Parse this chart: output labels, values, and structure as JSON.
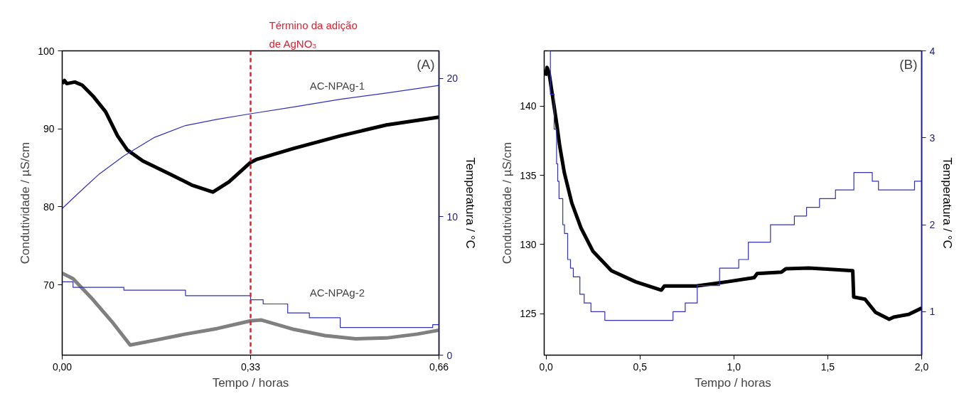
{
  "chart_data": [
    {
      "type": "line",
      "title": "(A)",
      "xlabel": "Tempo / horas",
      "ylabel": "Condutividade / µS/cm",
      "y2label": "Temperatura / °C",
      "xlim": [
        0,
        0.66
      ],
      "xticks": [
        {
          "value": 0,
          "label": "0,00"
        },
        {
          "value": 0.33,
          "label": "0,33"
        },
        {
          "value": 0.66,
          "label": "0,66"
        }
      ],
      "ylim": [
        61,
        100
      ],
      "yticks": [
        70,
        80,
        90,
        100
      ],
      "y2lim": [
        0,
        22
      ],
      "y2ticks": [
        0,
        10,
        20
      ],
      "grid": false,
      "ref_lines": [
        {
          "axis": "x",
          "value": 0.33,
          "label": "Término da adição\nde AgNO₃",
          "color": "#e02030",
          "line_style": "dashed"
        }
      ],
      "annotations": [
        "AC-NPAg-1",
        "AC-NPAg-2"
      ],
      "series": [
        {
          "color": "#000000",
          "x": [
            0,
            0.004,
            0.008,
            0.022,
            0.035,
            0.054,
            0.076,
            0.097,
            0.114,
            0.141,
            0.189,
            0.227,
            0.264,
            0.292,
            0.33,
            0.341,
            0.406,
            0.487,
            0.568,
            0.66
          ],
          "values": [
            95.8,
            96.2,
            95.8,
            96.0,
            95.6,
            94.2,
            92.2,
            89.1,
            87.3,
            85.9,
            84.2,
            82.8,
            81.9,
            83.2,
            85.7,
            86.1,
            87.5,
            89.1,
            90.5,
            91.5
          ]
        },
        {
          "color": "#808080",
          "x": [
            0,
            0.019,
            0.054,
            0.087,
            0.119,
            0.162,
            0.216,
            0.271,
            0.33,
            0.349,
            0.406,
            0.46,
            0.514,
            0.568,
            0.622,
            0.66
          ],
          "values": [
            71.5,
            70.8,
            68.1,
            65.3,
            62.3,
            62.9,
            63.7,
            64.4,
            65.4,
            65.5,
            64.3,
            63.5,
            63.1,
            63.2,
            63.7,
            64.2
          ]
        },
        {
          "color": "#3030b8",
          "axis": "y2",
          "x": [
            0,
            0.032,
            0.065,
            0.108,
            0.162,
            0.216,
            0.271,
            0.33,
            0.406,
            0.487,
            0.568,
            0.66
          ],
          "values": [
            10.6,
            11.85,
            13.1,
            14.4,
            15.75,
            16.6,
            17.05,
            17.45,
            17.95,
            18.5,
            18.95,
            19.5
          ]
        },
        {
          "color": "#3030b8",
          "axis": "y2",
          "type": "step",
          "x": [
            0,
            0.019,
            0.108,
            0.216,
            0.33,
            0.352,
            0.395,
            0.433,
            0.487,
            0.649,
            0.66
          ],
          "values": [
            5.3,
            4.9,
            4.7,
            4.3,
            4.0,
            3.7,
            3.05,
            2.7,
            2.0,
            2.2,
            2.2
          ]
        }
      ]
    },
    {
      "type": "line",
      "title": "(B)",
      "xlabel": "Tempo / horas",
      "ylabel": "Condutividade / µS/cm",
      "y2label": "Temperatura / °C",
      "xlim": [
        -0.01,
        2.0
      ],
      "xticks": [
        {
          "value": 0,
          "label": "0,0"
        },
        {
          "value": 0.5,
          "label": "0,5"
        },
        {
          "value": 1.0,
          "label": "1,0"
        },
        {
          "value": 1.5,
          "label": "1,5"
        },
        {
          "value": 2.0,
          "label": "2,0"
        }
      ],
      "ylim": [
        122,
        144
      ],
      "yticks": [
        125,
        130,
        135,
        140
      ],
      "y2lim": [
        0.5,
        4
      ],
      "y2ticks": [
        1,
        2,
        3,
        4
      ],
      "grid": false,
      "series": [
        {
          "color": "#000000",
          "x": [
            -0.003,
            0.005,
            0.016,
            0.057,
            0.073,
            0.097,
            0.137,
            0.186,
            0.25,
            0.348,
            0.477,
            0.614,
            0.63,
            0.8,
            0.962,
            1.108,
            1.124,
            1.253,
            1.277,
            1.4,
            1.528,
            1.633,
            1.638,
            1.698,
            1.754,
            1.827,
            1.851,
            1.932,
            2.0
          ],
          "values": [
            142.2,
            142.8,
            142.4,
            138.7,
            137.1,
            135.2,
            133.0,
            131.2,
            129.5,
            128.1,
            127.3,
            126.7,
            127.0,
            127.0,
            127.3,
            127.6,
            127.9,
            128.0,
            128.25,
            128.3,
            128.2,
            128.1,
            126.2,
            126.05,
            125.1,
            124.6,
            124.75,
            124.95,
            125.4
          ]
        },
        {
          "color": "#3030b8",
          "axis": "y2",
          "type": "step",
          "x": [
            0.008,
            0.023,
            0.043,
            0.056,
            0.062,
            0.069,
            0.089,
            0.098,
            0.115,
            0.13,
            0.145,
            0.18,
            0.203,
            0.239,
            0.313,
            0.676,
            0.741,
            0.805,
            0.924,
            1.026,
            1.077,
            1.195,
            1.322,
            1.387,
            1.456,
            1.541,
            1.639,
            1.737,
            1.77,
            1.962,
            2.0
          ],
          "values": [
            4.0,
            3.5,
            3.1,
            2.7,
            2.5,
            2.3,
            2.0,
            1.9,
            1.6,
            1.5,
            1.4,
            1.2,
            1.1,
            1.0,
            0.9,
            1.0,
            1.1,
            1.3,
            1.5,
            1.6,
            1.8,
            2.0,
            2.1,
            2.2,
            2.3,
            2.4,
            2.6,
            2.5,
            2.4,
            2.5,
            2.5
          ]
        }
      ]
    }
  ]
}
